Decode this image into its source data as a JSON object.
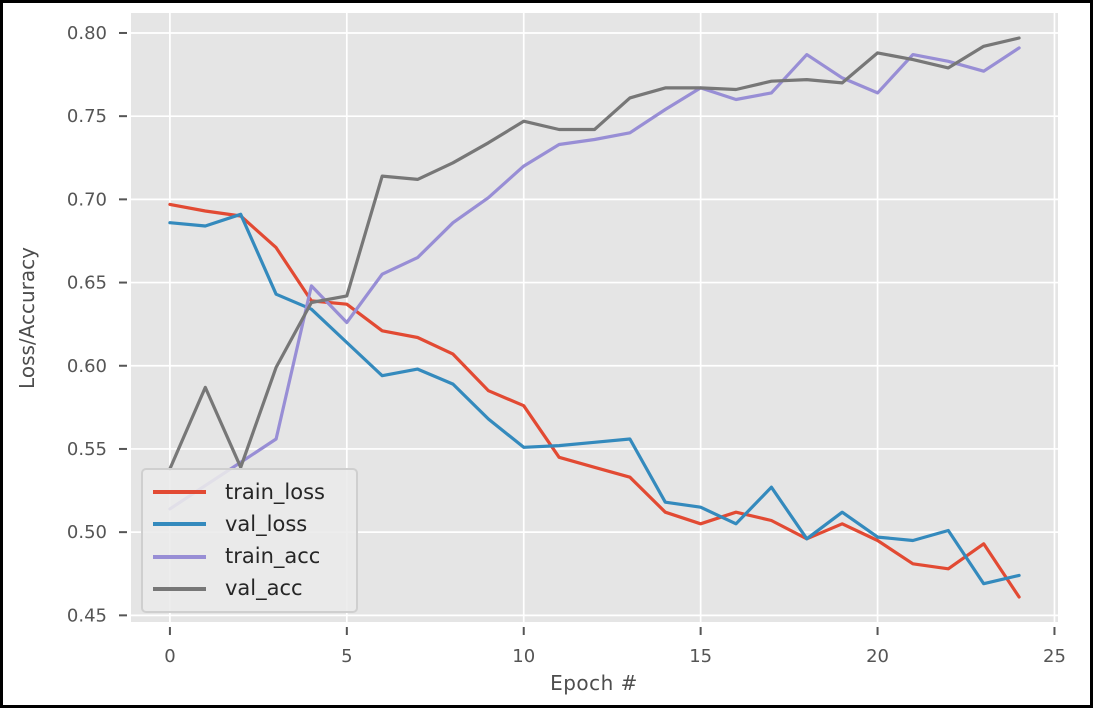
{
  "figure": {
    "background": "#ffffff",
    "border_color": "#000000"
  },
  "chart_data": {
    "type": "line",
    "title": "",
    "xlabel": "Epoch #",
    "ylabel": "Loss/Accuracy",
    "x": [
      0,
      1,
      2,
      3,
      4,
      5,
      6,
      7,
      8,
      9,
      10,
      11,
      12,
      13,
      14,
      15,
      16,
      17,
      18,
      19,
      20,
      21,
      22,
      23,
      24
    ],
    "series": [
      {
        "name": "train_loss",
        "color": "#E24A33",
        "values": [
          0.697,
          0.693,
          0.69,
          0.671,
          0.639,
          0.637,
          0.621,
          0.617,
          0.607,
          0.585,
          0.576,
          0.545,
          0.539,
          0.533,
          0.512,
          0.505,
          0.512,
          0.507,
          0.496,
          0.505,
          0.495,
          0.481,
          0.478,
          0.493,
          0.461
        ]
      },
      {
        "name": "val_loss",
        "color": "#348ABD",
        "values": [
          0.686,
          0.684,
          0.691,
          0.643,
          0.634,
          0.614,
          0.594,
          0.598,
          0.589,
          0.568,
          0.551,
          0.552,
          0.554,
          0.556,
          0.518,
          0.515,
          0.505,
          0.527,
          0.496,
          0.512,
          0.497,
          0.495,
          0.501,
          0.469,
          0.474
        ]
      },
      {
        "name": "train_acc",
        "color": "#988ED5",
        "values": [
          0.514,
          0.528,
          0.542,
          0.556,
          0.648,
          0.626,
          0.655,
          0.665,
          0.686,
          0.701,
          0.72,
          0.733,
          0.736,
          0.74,
          0.754,
          0.767,
          0.76,
          0.764,
          0.787,
          0.773,
          0.764,
          0.787,
          0.783,
          0.777,
          0.791
        ]
      },
      {
        "name": "val_acc",
        "color": "#777777",
        "values": [
          0.538,
          0.587,
          0.539,
          0.599,
          0.638,
          0.642,
          0.714,
          0.712,
          0.722,
          0.734,
          0.747,
          0.742,
          0.742,
          0.761,
          0.767,
          0.767,
          0.766,
          0.771,
          0.772,
          0.77,
          0.788,
          0.784,
          0.779,
          0.792,
          0.797
        ]
      }
    ],
    "x_ticks": [
      0,
      5,
      10,
      15,
      20,
      25
    ],
    "y_ticks": [
      0.45,
      0.5,
      0.55,
      0.6,
      0.65,
      0.7,
      0.75,
      0.8
    ],
    "xlim": [
      -1.1,
      25.1
    ],
    "ylim": [
      0.446,
      0.812
    ],
    "grid": true,
    "plot_background": "#e5e5e5",
    "grid_color": "#ffffff",
    "tick_color": "#555555",
    "label_color": "#4d4d4d",
    "legend_position": "lower-left"
  }
}
